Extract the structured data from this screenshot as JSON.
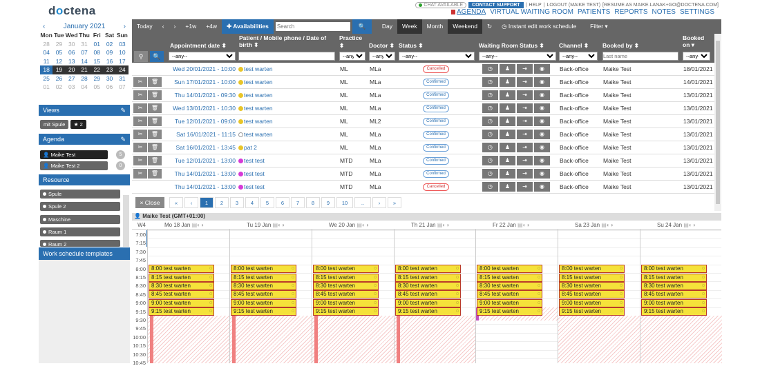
{
  "logo": {
    "text_a": "d",
    "text_o": "o",
    "text_b": "ctena"
  },
  "topbar": {
    "chat": "CHAT AVAILABLE",
    "support": "CONTACT SUPPORT",
    "help": "HELP",
    "logout": "LOGOUT (MAIKE TEST)",
    "resume": "[RESUME AS MAIKE.LANAK+GO@DOCTENA.COM]"
  },
  "nav": [
    "AGENDA",
    "VIRTUAL WAITING ROOM",
    "PATIENTS",
    "REPORTS",
    "NOTES",
    "SETTINGS"
  ],
  "minical": {
    "title": "January 2021",
    "prev": "‹",
    "next": "›",
    "days": [
      "Mon",
      "Tue",
      "Wed",
      "Thu",
      "Fri",
      "Sat",
      "Sun"
    ],
    "weeks": [
      [
        "28",
        "29",
        "30",
        "31",
        "01",
        "02",
        "03"
      ],
      [
        "04",
        "05",
        "06",
        "07",
        "08",
        "09",
        "10"
      ],
      [
        "11",
        "12",
        "13",
        "14",
        "15",
        "16",
        "17"
      ],
      [
        "18",
        "19",
        "20",
        "21",
        "22",
        "23",
        "24"
      ],
      [
        "25",
        "26",
        "27",
        "28",
        "29",
        "30",
        "31"
      ],
      [
        "01",
        "02",
        "03",
        "04",
        "05",
        "06",
        "07"
      ]
    ]
  },
  "views": {
    "title": "Views",
    "items": [
      "mit Spule",
      "★ 2"
    ]
  },
  "agenda": {
    "title": "Agenda",
    "items": [
      {
        "name": "Maike Test",
        "count": "5"
      },
      {
        "name": "Maike Test 2",
        "count": "0"
      }
    ]
  },
  "resource": {
    "title": "Resource",
    "items": [
      "Spule",
      "Spule 2",
      "Maschine",
      "Raum 1",
      "Raum 2"
    ]
  },
  "worktemplates": "Work schedule templates",
  "toolbar": {
    "today": "Today",
    "prev": "‹",
    "next": "›",
    "p1w": "+1w",
    "p4w": "+4w",
    "availabilities": "✚ Availabilities",
    "search_ph": "Search",
    "day": "Day",
    "week": "Week",
    "month": "Month",
    "weekend": "Weekend",
    "refresh": "↻",
    "instant": "◷ Instant edit work schedule",
    "filter": "Filter ▾"
  },
  "columns": {
    "appt": "Appointment date ⬍",
    "patient": "Patient / Mobile phone / Date of birth ⬍",
    "practice": "Practice",
    "practice2": "⬍",
    "doctor": "Doctor ⬍",
    "status": "Status ⬍",
    "wroom": "Waiting Room Status ⬍",
    "channel": "Channel ⬍",
    "booked_by": "Booked by ⬍",
    "booked_on": "Booked on ▾"
  },
  "filters": {
    "any": "--any--",
    "lastname_ph": "Last name"
  },
  "rows": [
    {
      "date": "Wed 20/01/2021 - 10:00",
      "patient": "test warten",
      "color": "#e8c52a",
      "practice": "ML",
      "doctor": "MLa",
      "status": "Cancelled",
      "cancel": true,
      "channel": "Back-office",
      "booked_by": "Maike Test",
      "booked_on": "18/01/2021",
      "actions": false
    },
    {
      "date": "Sun 17/01/2021 - 10:00",
      "patient": "test warten",
      "color": "#e8c52a",
      "practice": "ML",
      "doctor": "MLa",
      "status": "Confirmed",
      "cancel": false,
      "channel": "Back-office",
      "booked_by": "Maike Test",
      "booked_on": "14/01/2021",
      "actions": true
    },
    {
      "date": "Thu 14/01/2021 - 09:30",
      "patient": "test warten",
      "color": "#e8c52a",
      "practice": "ML",
      "doctor": "MLa",
      "status": "Confirmed",
      "cancel": false,
      "channel": "Back-office",
      "booked_by": "Maike Test",
      "booked_on": "13/01/2021",
      "actions": true
    },
    {
      "date": "Wed 13/01/2021 - 10:30",
      "patient": "test warten",
      "color": "#e8c52a",
      "practice": "ML",
      "doctor": "MLa",
      "status": "Confirmed",
      "cancel": false,
      "channel": "Back-office",
      "booked_by": "Maike Test",
      "booked_on": "13/01/2021",
      "actions": true
    },
    {
      "date": "Tue 12/01/2021 - 09:00",
      "patient": "test warten",
      "color": "#e8c52a",
      "practice": "ML",
      "doctor": "ML2",
      "status": "Confirmed",
      "cancel": false,
      "channel": "Back-office",
      "booked_by": "Maike Test",
      "booked_on": "13/01/2021",
      "actions": true
    },
    {
      "date": "Sat 16/01/2021 - 11:15",
      "patient": "test warten",
      "color": "#ffffff",
      "practice": "ML",
      "doctor": "MLa",
      "status": "Confirmed",
      "cancel": false,
      "channel": "Back-office",
      "booked_by": "Maike Test",
      "booked_on": "13/01/2021",
      "actions": true
    },
    {
      "date": "Sat 16/01/2021 - 13:45",
      "patient": "pat 2",
      "color": "#e8c52a",
      "practice": "ML",
      "doctor": "MLa",
      "status": "Confirmed",
      "cancel": false,
      "channel": "Back-office",
      "booked_by": "Maike Test",
      "booked_on": "13/01/2021",
      "actions": true
    },
    {
      "date": "Tue 12/01/2021 - 13:00",
      "patient": "test test",
      "color": "#d63ad6",
      "practice": "MTD",
      "doctor": "MLa",
      "status": "Confirmed",
      "cancel": false,
      "channel": "Back-office",
      "booked_by": "Maike Test",
      "booked_on": "13/01/2021",
      "actions": true
    },
    {
      "date": "Thu 14/01/2021 - 13:00",
      "patient": "test test",
      "color": "#d63ad6",
      "practice": "MTD",
      "doctor": "MLa",
      "status": "Confirmed",
      "cancel": false,
      "channel": "Back-office",
      "booked_by": "Maike Test",
      "booked_on": "13/01/2021",
      "actions": true
    },
    {
      "date": "Thu 14/01/2021 - 13:00",
      "patient": "test test",
      "color": "#d63ad6",
      "practice": "MTD",
      "doctor": "MLa",
      "status": "Cancelled",
      "cancel": true,
      "channel": "Back-office",
      "booked_by": "Maike Test",
      "booked_on": "13/01/2021",
      "actions": false
    }
  ],
  "pager": {
    "close": "× Close",
    "pages": [
      "«",
      "‹",
      "1",
      "2",
      "3",
      "4",
      "5",
      "6",
      "7",
      "8",
      "9",
      "10",
      "..",
      "›",
      "»"
    ],
    "active": "1"
  },
  "week": {
    "header": "Maike Test (GMT+01:00)",
    "wk": "W4",
    "days": [
      "Mo 18 Jan",
      "Tu 19 Jan",
      "We 20 Jan",
      "Th 21 Jan",
      "Fr 22 Jan",
      "Sa 23 Jan",
      "Su 24 Jan"
    ],
    "times": [
      "7:00",
      "7:15",
      "7:30",
      "7:45",
      "8:00",
      "8:15",
      "8:30",
      "8:45",
      "9:00",
      "9:15",
      "9:30",
      "9:45",
      "10:00",
      "10:15",
      "10:30",
      "10:45"
    ],
    "events": [
      "8:00 test warten",
      "8:15 test warten",
      "8:30 test warten",
      "8:45 test warten",
      "9:00 test warten",
      "9:15 test warten"
    ]
  }
}
